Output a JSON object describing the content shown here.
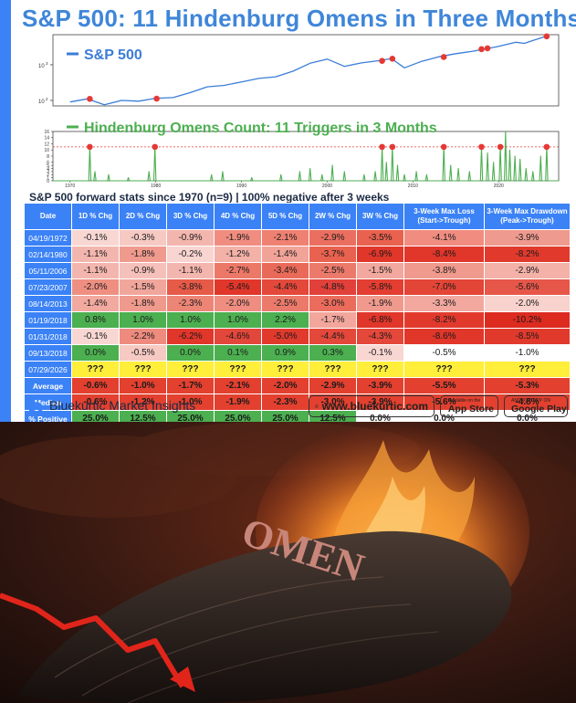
{
  "title": "S&P 500: 11 Hindenburg Omens in Three Months",
  "chart_data": [
    {
      "type": "line",
      "legend": [
        "S&P 500"
      ],
      "scale": "log",
      "y_ticks": [
        {
          "label": "10",
          "sup": "2",
          "value": 100
        },
        {
          "label": "10",
          "sup": "3",
          "value": 1000
        }
      ],
      "x_ticks": [
        "1970",
        "1980",
        "1990",
        "2000",
        "2010",
        "2020"
      ],
      "x": [
        1970,
        1972,
        1974,
        1976,
        1978,
        1980,
        1982,
        1984,
        1986,
        1988,
        1990,
        1992,
        1994,
        1996,
        1998,
        2000,
        2002,
        2004,
        2006,
        2007.5,
        2009,
        2011,
        2013,
        2015,
        2017,
        2018,
        2019,
        2020,
        2022,
        2023,
        2024,
        2025.5
      ],
      "y": [
        90,
        110,
        75,
        100,
        95,
        115,
        120,
        165,
        240,
        265,
        330,
        415,
        460,
        660,
        1100,
        1450,
        900,
        1130,
        1300,
        1500,
        820,
        1250,
        1680,
        2050,
        2400,
        2680,
        2950,
        3300,
        4300,
        4000,
        4800,
        6300
      ],
      "omen_markers": [
        {
          "x": 1972.3,
          "y": 110
        },
        {
          "x": 1980.1,
          "y": 112
        },
        {
          "x": 2006.4,
          "y": 1290
        },
        {
          "x": 2007.6,
          "y": 1480
        },
        {
          "x": 2013.6,
          "y": 1650
        },
        {
          "x": 2018.0,
          "y": 2750
        },
        {
          "x": 2018.7,
          "y": 2900
        },
        {
          "x": 2025.6,
          "y": 6300
        }
      ]
    },
    {
      "type": "line",
      "legend": [
        "Hindenburg Omens Count: 11 Triggers in 3 Months"
      ],
      "y_ticks": [
        "0",
        "1",
        "2",
        "3",
        "4",
        "5",
        "6",
        "8",
        "10",
        "12",
        "14",
        "16"
      ],
      "ylim": [
        0,
        16
      ],
      "threshold": 11,
      "x_ticks": [
        "1970",
        "1980",
        "1990",
        "2000",
        "2010",
        "2020"
      ],
      "spikes": [
        {
          "x": 1972.3,
          "y": 11
        },
        {
          "x": 1972.9,
          "y": 3
        },
        {
          "x": 1974.5,
          "y": 2
        },
        {
          "x": 1976.8,
          "y": 1
        },
        {
          "x": 1979.2,
          "y": 3
        },
        {
          "x": 1979.9,
          "y": 11
        },
        {
          "x": 1986.5,
          "y": 2
        },
        {
          "x": 1987.8,
          "y": 3
        },
        {
          "x": 1991.2,
          "y": 1
        },
        {
          "x": 1994.6,
          "y": 2
        },
        {
          "x": 1996.8,
          "y": 3
        },
        {
          "x": 1998.0,
          "y": 4
        },
        {
          "x": 1999.4,
          "y": 2
        },
        {
          "x": 2000.6,
          "y": 5
        },
        {
          "x": 2002.0,
          "y": 3
        },
        {
          "x": 2004.3,
          "y": 2
        },
        {
          "x": 2005.6,
          "y": 3
        },
        {
          "x": 2006.4,
          "y": 11
        },
        {
          "x": 2006.9,
          "y": 6
        },
        {
          "x": 2007.6,
          "y": 11
        },
        {
          "x": 2008.2,
          "y": 5
        },
        {
          "x": 2009.0,
          "y": 2
        },
        {
          "x": 2010.4,
          "y": 3
        },
        {
          "x": 2011.6,
          "y": 2
        },
        {
          "x": 2013.6,
          "y": 11
        },
        {
          "x": 2014.4,
          "y": 5
        },
        {
          "x": 2015.3,
          "y": 4
        },
        {
          "x": 2016.6,
          "y": 3
        },
        {
          "x": 2018.0,
          "y": 11
        },
        {
          "x": 2018.7,
          "y": 9
        },
        {
          "x": 2019.4,
          "y": 6
        },
        {
          "x": 2020.2,
          "y": 11
        },
        {
          "x": 2020.8,
          "y": 16
        },
        {
          "x": 2021.3,
          "y": 10
        },
        {
          "x": 2021.9,
          "y": 8
        },
        {
          "x": 2022.5,
          "y": 7
        },
        {
          "x": 2023.2,
          "y": 4
        },
        {
          "x": 2024.0,
          "y": 3
        },
        {
          "x": 2024.9,
          "y": 8
        },
        {
          "x": 2025.6,
          "y": 11
        }
      ],
      "omen_markers": [
        {
          "x": 1972.3,
          "y": 11
        },
        {
          "x": 1979.9,
          "y": 11
        },
        {
          "x": 2006.4,
          "y": 11
        },
        {
          "x": 2007.6,
          "y": 11
        },
        {
          "x": 2013.6,
          "y": 11
        },
        {
          "x": 2018.0,
          "y": 11
        },
        {
          "x": 2020.2,
          "y": 11
        },
        {
          "x": 2025.6,
          "y": 11
        }
      ]
    },
    {
      "type": "table",
      "caption": "S&P 500 forward stats since 1970 (n=9) | 100% negative after 3 weeks",
      "columns": [
        "Date",
        "1D % Chg",
        "2D % Chg",
        "3D % Chg",
        "4D % Chg",
        "5D % Chg",
        "2W % Chg",
        "3W % Chg",
        "3-Week Max Loss (Start->Trough)",
        "3-Week Max Drawdown (Peak->Trough)"
      ],
      "rows": [
        {
          "date": "04/19/1972",
          "cells": [
            "-0.1%",
            "-0.3%",
            "-0.9%",
            "-1.9%",
            "-2.1%",
            "-2.9%",
            "-3.5%",
            "-4.1%",
            "-3.9%"
          ],
          "colors": [
            "#f8d7d3",
            "#f6c9c3",
            "#f3b6ae",
            "#f08d80",
            "#ef8172",
            "#ea6f60",
            "#e9614f",
            "#f08d80",
            "#ef9a8e"
          ]
        },
        {
          "date": "02/14/1980",
          "cells": [
            "-1.1%",
            "-1.8%",
            "-0.2%",
            "-1.2%",
            "-1.4%",
            "-3.7%",
            "-6.9%",
            "-8.4%",
            "-8.2%"
          ],
          "colors": [
            "#f3b6ae",
            "#f09a8e",
            "#f8d5d1",
            "#f3b1a8",
            "#f1a398",
            "#e9614f",
            "#e1362a",
            "#e1362a",
            "#e13a2d"
          ]
        },
        {
          "date": "05/11/2006",
          "cells": [
            "-1.1%",
            "-0.9%",
            "-1.1%",
            "-2.7%",
            "-3.4%",
            "-2.5%",
            "-1.5%",
            "-3.8%",
            "-2.9%"
          ],
          "colors": [
            "#f3b6ae",
            "#f5c0b9",
            "#f3b6ae",
            "#ec7868",
            "#ea6a59",
            "#ec7a6b",
            "#f2a89e",
            "#f0998d",
            "#f3b1a8"
          ]
        },
        {
          "date": "07/23/2007",
          "cells": [
            "-2.0%",
            "-1.5%",
            "-3.8%",
            "-5.4%",
            "-4.4%",
            "-4.8%",
            "-5.8%",
            "-7.0%",
            "-5.6%"
          ],
          "colors": [
            "#ef8f82",
            "#f1a69c",
            "#e65a48",
            "#e1362a",
            "#e3483a",
            "#e2403a",
            "#e33e31",
            "#e34536",
            "#e6574a"
          ]
        },
        {
          "date": "08/14/2013",
          "cells": [
            "-1.4%",
            "-1.8%",
            "-2.3%",
            "-2.0%",
            "-2.5%",
            "-3.0%",
            "-1.9%",
            "-3.3%",
            "-2.0%"
          ],
          "colors": [
            "#f2a99f",
            "#f09a8e",
            "#ed8576",
            "#ee8d80",
            "#ec7a6b",
            "#eb6c5c",
            "#f09a8e",
            "#f2a89e",
            "#f8d2cc"
          ]
        },
        {
          "date": "01/19/2018",
          "cells": [
            "0.8%",
            "1.0%",
            "1.0%",
            "1.0%",
            "2.2%",
            "-1.7%",
            "-6.8%",
            "-8.2%",
            "-10.2%"
          ],
          "colors": [
            "#4caf50",
            "#4caf50",
            "#4caf50",
            "#4caf50",
            "#4caf50",
            "#f2a69c",
            "#e1362a",
            "#e13a2d",
            "#dd2b20"
          ]
        },
        {
          "date": "01/31/2018",
          "cells": [
            "-0.1%",
            "-2.2%",
            "-6.2%",
            "-4.6%",
            "-5.0%",
            "-4.4%",
            "-4.3%",
            "-8.6%",
            "-8.5%"
          ],
          "colors": [
            "#f8d7d3",
            "#ee8b7e",
            "#e1362a",
            "#e3463a",
            "#e13a2d",
            "#e3483a",
            "#e4483b",
            "#e1362a",
            "#e13a2d"
          ]
        },
        {
          "date": "09/13/2018",
          "cells": [
            "0.0%",
            "-0.5%",
            "0.0%",
            "0.1%",
            "0.9%",
            "0.3%",
            "-0.1%",
            "-0.5%",
            "-1.0%"
          ],
          "colors": [
            "#4caf50",
            "#f6c9c3",
            "#4caf50",
            "#4caf50",
            "#4caf50",
            "#4caf50",
            "#f8d7d3",
            "#ffffff",
            "#ffffff"
          ]
        },
        {
          "date": "07/29/2026",
          "cells": [
            "???",
            "???",
            "???",
            "???",
            "???",
            "???",
            "???",
            "???",
            "???"
          ],
          "colors": [
            "#ffee3a",
            "#ffee3a",
            "#ffee3a",
            "#ffee3a",
            "#ffee3a",
            "#ffee3a",
            "#ffee3a",
            "#ffee3a",
            "#ffee3a"
          ]
        }
      ],
      "summary": [
        {
          "label": "Average",
          "cells": [
            "-0.6%",
            "-1.0%",
            "-1.7%",
            "-2.1%",
            "-2.0%",
            "-2.9%",
            "-3.9%",
            "-5.5%",
            "-5.3%"
          ],
          "colors": [
            "#e3402f",
            "#e3402f",
            "#e3402f",
            "#e3402f",
            "#e3402f",
            "#e3402f",
            "#e3402f",
            "#e3402f",
            "#e3402f"
          ]
        },
        {
          "label": "Median",
          "cells": [
            "-0.6%",
            "-1.2%",
            "-1.0%",
            "-1.9%",
            "-2.3%",
            "-3.0%",
            "-3.9%",
            "-5.6%",
            "-4.8%"
          ],
          "colors": [
            "#e3402f",
            "#e3402f",
            "#e3402f",
            "#e3402f",
            "#e3402f",
            "#e3402f",
            "#e3402f",
            "#e3402f",
            "#e3402f"
          ]
        },
        {
          "label": "% Positive",
          "cells": [
            "25.0%",
            "12.5%",
            "25.0%",
            "25.0%",
            "25.0%",
            "12.5%",
            "0.0%",
            "0.0%",
            "0.0%"
          ],
          "colors": [
            "#4caf50",
            "#4caf50",
            "#4caf50",
            "#4caf50",
            "#4caf50",
            "#4caf50",
            "#ffffff",
            "#ffffff",
            "#ffffff"
          ]
        }
      ]
    }
  ],
  "colors": {
    "accent": "#3b82f6",
    "price_line": "#3b7dd8",
    "omens_line": "#4caf50",
    "marker": "#e53935",
    "threshold": "#e53935"
  },
  "footer": {
    "brand": "Bluekurtic Market Insights",
    "website": "www.bluekurtic.com",
    "app_store_small": "Available on the",
    "app_store_big": "App Store",
    "google_play_small": "ANDROID APP ON",
    "google_play_big": "Google Play"
  },
  "photo": {
    "text": "OMEN",
    "colors": {
      "sky": "#3a1a12",
      "fire": "#f08a2a",
      "arrow": "#e1251b"
    }
  }
}
